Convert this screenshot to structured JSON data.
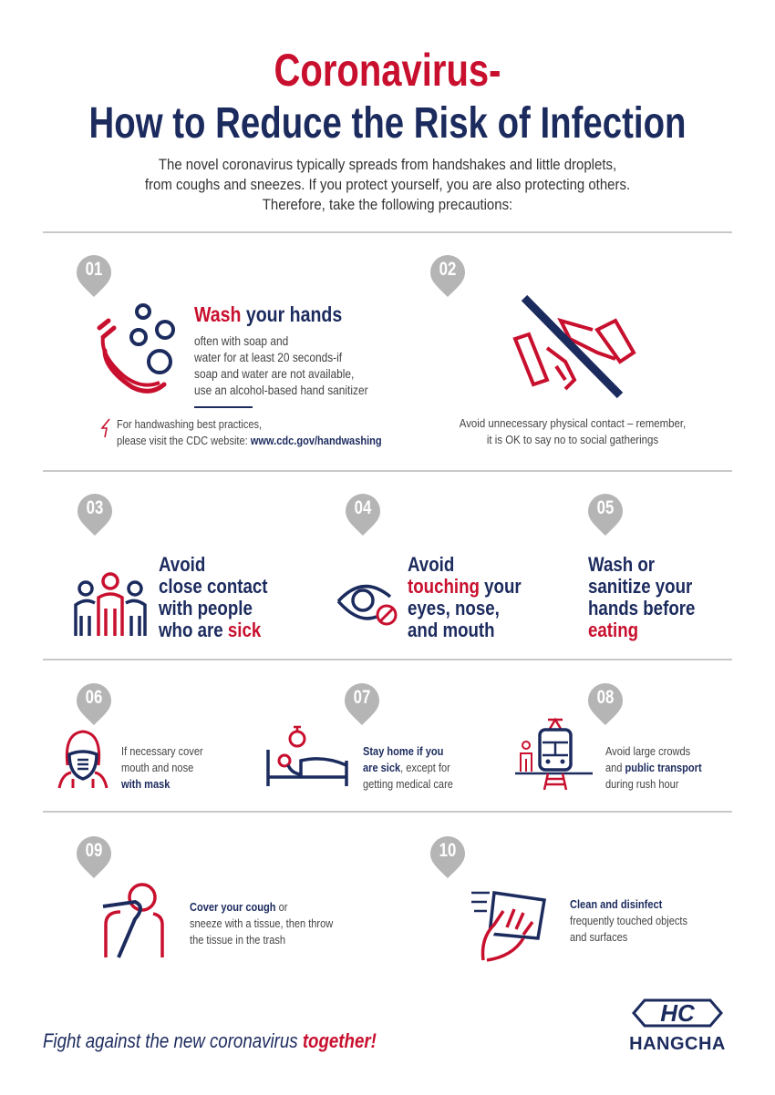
{
  "header": {
    "title_line1": "Coronavirus-",
    "title_line2": "How to Reduce the Risk of Infection",
    "intro": [
      "The novel coronavirus typically spreads from handshakes and little droplets,",
      "from coughs and sneezes. If you protect yourself, you are also protecting others.",
      "Therefore, take the following precautions:"
    ]
  },
  "colors": {
    "red": "#c8102e",
    "navy": "#1c2b5e",
    "pin": "#b5b5b5"
  },
  "tips": [
    {
      "number": "01",
      "icon": "hand-washing-icon",
      "title_red": "Wash",
      "title_rest": " your hands",
      "body": [
        "often with soap and",
        "water for at least 20 seconds-if",
        "soap and water are not available,",
        "use an alcohol-based hand sanitizer"
      ],
      "note": [
        "For handwashing best practices,",
        "please visit the CDC website: "
      ],
      "note_link": "www.cdc.gov/handwashing"
    },
    {
      "number": "02",
      "icon": "no-handshake-icon",
      "body": [
        "Avoid unnecessary physical contact – remember,",
        "it is OK to say no to social gatherings"
      ]
    },
    {
      "number": "03",
      "icon": "group-people-icon",
      "lines": [
        "Avoid",
        "close contact",
        "with people"
      ],
      "last_a": "who are ",
      "last_red": "sick"
    },
    {
      "number": "04",
      "icon": "eye-no-touch-icon",
      "line1": "Avoid",
      "line2_red": "touching",
      "line2_rest": " your",
      "line3": "eyes, nose,",
      "line4": "and mouth"
    },
    {
      "number": "05",
      "icon": "wash-before-eating-icon",
      "lines": [
        "Wash or",
        "sanitize your",
        "hands before"
      ],
      "last_red": "eating"
    },
    {
      "number": "06",
      "icon": "mask-icon",
      "lines": [
        "If necessary cover",
        "mouth and nose"
      ],
      "bold": "with mask"
    },
    {
      "number": "07",
      "icon": "bed-icon",
      "bold1": "Stay home if you",
      "bold2": "are sick",
      "rest2": ", except for",
      "line3": "getting medical care"
    },
    {
      "number": "08",
      "icon": "train-icon",
      "line1": "Avoid large crowds",
      "pre2": "and ",
      "bold2": "public transport",
      "line3": "during rush hour"
    },
    {
      "number": "09",
      "icon": "cough-elbow-icon",
      "bold1": "Cover your cough",
      "rest1": " or",
      "lines": [
        "sneeze with a tissue, then throw",
        "the tissue in the trash"
      ]
    },
    {
      "number": "10",
      "icon": "cleaning-icon",
      "bold1": "Clean and disinfect",
      "lines": [
        "frequently touched objects",
        "and surfaces"
      ]
    }
  ],
  "footer": {
    "slogan": "Fight against the new coronavirus ",
    "slogan_red": "together!",
    "brand": "HANGCHA",
    "logo_mark": "HC"
  }
}
